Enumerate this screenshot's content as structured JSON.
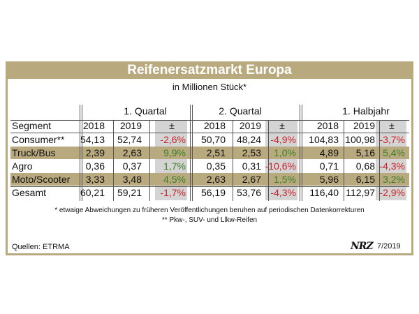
{
  "chart_data": {
    "type": "table",
    "title": "Reifenersatzmarkt Europa",
    "subtitle": "in Millionen Stück*",
    "segment_header": "Segment",
    "period_groups": [
      "1. Quartal",
      "2. Quartal",
      "1. Halbjahr"
    ],
    "column_headers": [
      "2018",
      "2019",
      "±",
      "2018",
      "2019",
      "±",
      "2018",
      "2019",
      "±"
    ],
    "rows": [
      {
        "segment": "Consumer**",
        "highlight": false,
        "values": [
          "54,13",
          "52,74",
          "-2,6%",
          "50,70",
          "48,24",
          "-4,9%",
          "104,83",
          "100,98",
          "-3,7%"
        ]
      },
      {
        "segment": "Truck/Bus",
        "highlight": true,
        "values": [
          "2,39",
          "2,63",
          "9,9%",
          "2,51",
          "2,53",
          "1,0%",
          "4,89",
          "5,16",
          "5,4%"
        ]
      },
      {
        "segment": "Agro",
        "highlight": false,
        "values": [
          "0,36",
          "0,37",
          "1,7%",
          "0,35",
          "0,31",
          "-10,6%",
          "0,71",
          "0,68",
          "-4,3%"
        ]
      },
      {
        "segment": "Moto/Scooter",
        "highlight": true,
        "values": [
          "3,33",
          "3,48",
          "4,5%",
          "2,63",
          "2,67",
          "1,5%",
          "5,96",
          "6,15",
          "3,2%"
        ]
      }
    ],
    "total": {
      "segment": "Gesamt",
      "values": [
        "60,21",
        "59,21",
        "-1,7%",
        "56,19",
        "53,76",
        "-4,3%",
        "116,40",
        "112,97",
        "-2,9%"
      ]
    }
  },
  "footnotes": {
    "note1": "* etwaige Abweichungen zu früheren Veröffentlichungen beruhen auf periodischen Datenkorrekturen",
    "note2": "** Pkw-, SUV- und Llkw-Reifen"
  },
  "source": "Quellen: ETRMA",
  "publisher_logo": "NRZ",
  "issue": "7/2019",
  "colors": {
    "band": "#b9a97e",
    "positive": "#3a7f25",
    "negative": "#c8232a",
    "delta_column": "#d4d4d4"
  }
}
